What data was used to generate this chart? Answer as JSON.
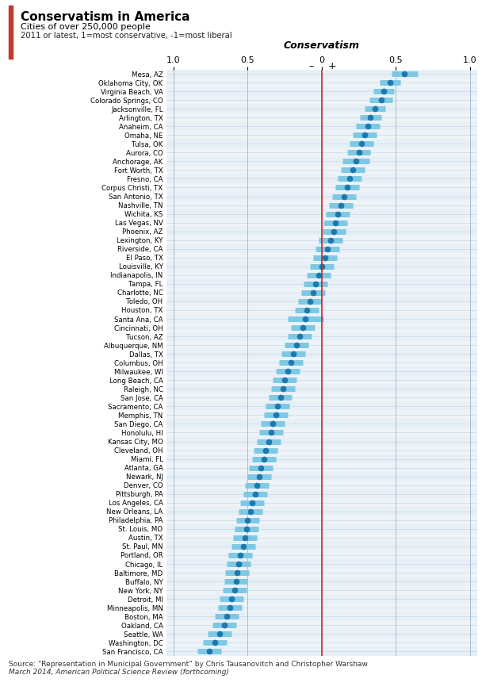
{
  "title": "Conservatism in America",
  "subtitle1": "Cities of over 250,000 people",
  "subtitle2": "2011 or latest, 1=most conservative, -1=most liberal",
  "axis_label": "Conservatism",
  "source_line1": "Source: “Representation in Municipal Government” by Chris Tausanovitch and Christopher Warshaw",
  "source_line2": "March 2014, American Political Science Review (forthcoming)",
  "cities": [
    "Mesa, AZ",
    "Oklahoma City, OK",
    "Virginia Beach, VA",
    "Colorado Springs, CO",
    "Jacksonville, FL",
    "Arlington, TX",
    "Anaheim, CA",
    "Omaha, NE",
    "Tulsa, OK",
    "Aurora, CO",
    "Anchorage, AK",
    "Fort Worth, TX",
    "Fresno, CA",
    "Corpus Christi, TX",
    "San Antonio, TX",
    "Nashville, TN",
    "Wichita, KS",
    "Las Vegas, NV",
    "Phoenix, AZ",
    "Lexington, KY",
    "Riverside, CA",
    "El Paso, TX",
    "Louisville, KY",
    "Indianapolis, IN",
    "Tampa, FL",
    "Charlotte, NC",
    "Toledo, OH",
    "Houston, TX",
    "Santa Ana, CA",
    "Cincinnati, OH",
    "Tucson, AZ",
    "Albuquerque, NM",
    "Dallas, TX",
    "Columbus, OH",
    "Milwaukee, WI",
    "Long Beach, CA",
    "Raleigh, NC",
    "San Jose, CA",
    "Sacramento, CA",
    "Memphis, TN",
    "San Diego, CA",
    "Honolulu, HI",
    "Kansas City, MO",
    "Cleveland, OH",
    "Miami, FL",
    "Atlanta, GA",
    "Newark, NJ",
    "Denver, CO",
    "Pittsburgh, PA",
    "Los Angeles, CA",
    "New Orleans, LA",
    "Philadelphia, PA",
    "St. Louis, MO",
    "Austin, TX",
    "St. Paul, MN",
    "Portland, OR",
    "Chicago, IL",
    "Baltimore, MD",
    "Buffalo, NY",
    "New York, NY",
    "Detroit, MI",
    "Minneapolis, MN",
    "Boston, MA",
    "Oakland, CA",
    "Seattle, WA",
    "Washington, DC",
    "San Francisco, CA"
  ],
  "values": [
    0.56,
    0.46,
    0.42,
    0.4,
    0.36,
    0.33,
    0.31,
    0.29,
    0.27,
    0.25,
    0.23,
    0.21,
    0.19,
    0.17,
    0.15,
    0.13,
    0.11,
    0.09,
    0.08,
    0.06,
    0.04,
    0.02,
    0.0,
    -0.02,
    -0.04,
    -0.06,
    -0.08,
    -0.1,
    -0.11,
    -0.13,
    -0.15,
    -0.17,
    -0.19,
    -0.21,
    -0.23,
    -0.25,
    -0.26,
    -0.28,
    -0.3,
    -0.31,
    -0.33,
    -0.34,
    -0.36,
    -0.38,
    -0.39,
    -0.41,
    -0.42,
    -0.44,
    -0.45,
    -0.47,
    -0.48,
    -0.5,
    -0.51,
    -0.52,
    -0.53,
    -0.55,
    -0.56,
    -0.57,
    -0.58,
    -0.59,
    -0.61,
    -0.62,
    -0.64,
    -0.66,
    -0.69,
    -0.72,
    -0.76
  ],
  "ci_low": [
    0.47,
    0.39,
    0.35,
    0.32,
    0.29,
    0.26,
    0.23,
    0.21,
    0.19,
    0.17,
    0.14,
    0.13,
    0.11,
    0.09,
    0.07,
    0.05,
    0.03,
    0.01,
    0.0,
    -0.02,
    -0.04,
    -0.06,
    -0.08,
    -0.1,
    -0.12,
    -0.14,
    -0.16,
    -0.18,
    -0.23,
    -0.21,
    -0.23,
    -0.25,
    -0.27,
    -0.29,
    -0.31,
    -0.33,
    -0.34,
    -0.36,
    -0.38,
    -0.39,
    -0.41,
    -0.42,
    -0.44,
    -0.46,
    -0.47,
    -0.49,
    -0.5,
    -0.52,
    -0.53,
    -0.55,
    -0.56,
    -0.58,
    -0.59,
    -0.6,
    -0.61,
    -0.63,
    -0.64,
    -0.65,
    -0.66,
    -0.67,
    -0.69,
    -0.7,
    -0.72,
    -0.74,
    -0.77,
    -0.8,
    -0.84
  ],
  "ci_high": [
    0.65,
    0.53,
    0.49,
    0.48,
    0.43,
    0.4,
    0.39,
    0.37,
    0.35,
    0.33,
    0.32,
    0.29,
    0.27,
    0.25,
    0.23,
    0.21,
    0.19,
    0.17,
    0.16,
    0.14,
    0.12,
    0.1,
    0.08,
    0.06,
    0.04,
    0.02,
    0.0,
    -0.02,
    0.01,
    -0.05,
    -0.07,
    -0.09,
    -0.11,
    -0.13,
    -0.15,
    -0.17,
    -0.18,
    -0.2,
    -0.22,
    -0.23,
    -0.25,
    -0.26,
    -0.28,
    -0.3,
    -0.31,
    -0.33,
    -0.34,
    -0.36,
    -0.37,
    -0.39,
    -0.4,
    -0.42,
    -0.43,
    -0.44,
    -0.45,
    -0.47,
    -0.48,
    -0.49,
    -0.5,
    -0.51,
    -0.53,
    -0.54,
    -0.56,
    -0.58,
    -0.61,
    -0.64,
    -0.68
  ],
  "dot_color": "#1a7aad",
  "bar_color": "#7ec8e3",
  "redline_color": "#d42020",
  "gridline_color": "#c5d8e8",
  "bg_color": "#eef3f8",
  "header_bar_color": "#c0392b",
  "vline_color": "#a0b4c4"
}
